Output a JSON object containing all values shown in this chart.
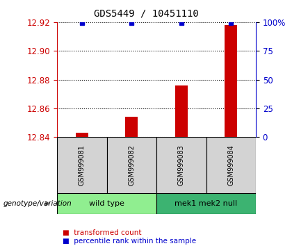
{
  "title": "GDS5449 / 10451110",
  "samples": [
    "GSM999081",
    "GSM999082",
    "GSM999083",
    "GSM999084"
  ],
  "red_values": [
    12.843,
    12.854,
    12.876,
    12.918
  ],
  "blue_values": [
    99.5,
    99.5,
    99.5,
    99.5
  ],
  "ylim_left": [
    12.84,
    12.92
  ],
  "ylim_right": [
    0,
    100
  ],
  "yticks_left": [
    12.84,
    12.86,
    12.88,
    12.9,
    12.92
  ],
  "yticks_right": [
    0,
    25,
    50,
    75,
    100
  ],
  "ytick_labels_right": [
    "0",
    "25",
    "50",
    "75",
    "100%"
  ],
  "groups": [
    {
      "label": "wild type",
      "samples": [
        0,
        1
      ],
      "color": "#90ee90"
    },
    {
      "label": "mek1 mek2 null",
      "samples": [
        2,
        3
      ],
      "color": "#3cb371"
    }
  ],
  "group_label_prefix": "genotype/variation",
  "bar_color": "#cc0000",
  "marker_color": "#0000cc",
  "legend_red": "transformed count",
  "legend_blue": "percentile rank within the sample",
  "background_color": "#ffffff",
  "plot_bg_color": "#ffffff",
  "sample_box_color": "#d3d3d3",
  "left_axis_color": "#cc0000",
  "right_axis_color": "#0000cc",
  "bar_width": 0.25
}
